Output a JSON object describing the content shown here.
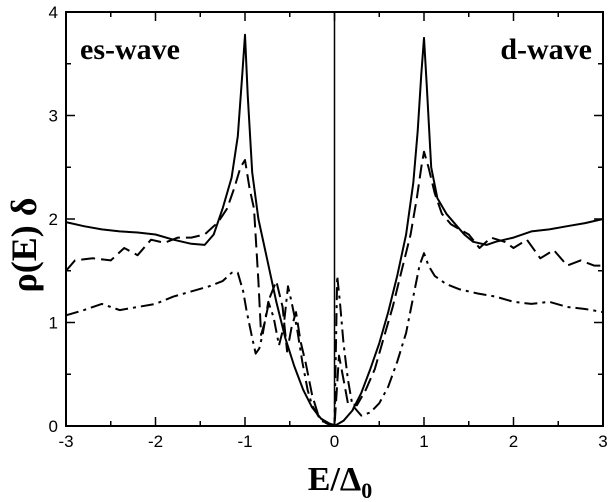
{
  "chart_data": {
    "type": "line",
    "xlabel": "E/Δ",
    "xlabel_sub": "0",
    "ylabel": "ρ(E) δ",
    "xlim": [
      -3,
      3
    ],
    "ylim": [
      0,
      4
    ],
    "x_ticks": [
      -3,
      -2,
      -1,
      0,
      1,
      2,
      3
    ],
    "x_tick_labels": [
      "-3",
      "-2",
      "-1",
      "0",
      "1",
      "2",
      "3"
    ],
    "y_ticks": [
      0,
      1,
      2,
      3,
      4
    ],
    "y_tick_labels": [
      "0",
      "1",
      "2",
      "3",
      "4"
    ],
    "grid": false,
    "legend": "none",
    "annotations": {
      "left": "es-wave",
      "right": "d-wave"
    },
    "series": [
      {
        "style": "solid",
        "points": [
          [
            -3,
            1.97
          ],
          [
            -2.8,
            1.93
          ],
          [
            -2.6,
            1.9
          ],
          [
            -2.4,
            1.88
          ],
          [
            -2.2,
            1.87
          ],
          [
            -2.0,
            1.85
          ],
          [
            -1.8,
            1.8
          ],
          [
            -1.6,
            1.76
          ],
          [
            -1.45,
            1.75
          ],
          [
            -1.35,
            1.85
          ],
          [
            -1.25,
            2.1
          ],
          [
            -1.15,
            2.4
          ],
          [
            -1.08,
            2.8
          ],
          [
            -1.03,
            3.4
          ],
          [
            -1.0,
            3.78
          ],
          [
            -0.97,
            3.2
          ],
          [
            -0.92,
            2.45
          ],
          [
            -0.85,
            2.0
          ],
          [
            -0.75,
            1.6
          ],
          [
            -0.65,
            1.2
          ],
          [
            -0.55,
            0.85
          ],
          [
            -0.45,
            0.58
          ],
          [
            -0.35,
            0.35
          ],
          [
            -0.25,
            0.18
          ],
          [
            -0.15,
            0.07
          ],
          [
            -0.05,
            0.02
          ],
          [
            0.0,
            0.0
          ],
          [
            0.1,
            0.05
          ],
          [
            0.2,
            0.15
          ],
          [
            0.3,
            0.32
          ],
          [
            0.4,
            0.55
          ],
          [
            0.5,
            0.8
          ],
          [
            0.6,
            1.1
          ],
          [
            0.7,
            1.45
          ],
          [
            0.8,
            1.85
          ],
          [
            0.88,
            2.35
          ],
          [
            0.93,
            2.85
          ],
          [
            0.97,
            3.4
          ],
          [
            1.0,
            3.75
          ],
          [
            1.03,
            3.3
          ],
          [
            1.08,
            2.5
          ],
          [
            1.15,
            2.2
          ],
          [
            1.25,
            2.05
          ],
          [
            1.35,
            1.95
          ],
          [
            1.45,
            1.85
          ],
          [
            1.55,
            1.78
          ],
          [
            1.7,
            1.75
          ],
          [
            1.8,
            1.78
          ],
          [
            2.0,
            1.82
          ],
          [
            2.2,
            1.88
          ],
          [
            2.4,
            1.9
          ],
          [
            2.6,
            1.93
          ],
          [
            2.8,
            1.96
          ],
          [
            3.0,
            2.0
          ]
        ]
      },
      {
        "style": "dashed",
        "points": [
          [
            -3,
            1.5
          ],
          [
            -2.9,
            1.6
          ],
          [
            -2.7,
            1.62
          ],
          [
            -2.5,
            1.6
          ],
          [
            -2.35,
            1.72
          ],
          [
            -2.2,
            1.65
          ],
          [
            -2.05,
            1.8
          ],
          [
            -1.9,
            1.77
          ],
          [
            -1.75,
            1.82
          ],
          [
            -1.6,
            1.82
          ],
          [
            -1.45,
            1.85
          ],
          [
            -1.3,
            1.97
          ],
          [
            -1.2,
            2.1
          ],
          [
            -1.12,
            2.3
          ],
          [
            -1.05,
            2.5
          ],
          [
            -1.0,
            2.57
          ],
          [
            -0.95,
            2.3
          ],
          [
            -0.9,
            2.1
          ],
          [
            -0.85,
            1.4
          ],
          [
            -0.82,
            0.88
          ],
          [
            -0.78,
            1.0
          ],
          [
            -0.72,
            1.25
          ],
          [
            -0.65,
            1.4
          ],
          [
            -0.58,
            1.15
          ],
          [
            -0.53,
            0.72
          ],
          [
            -0.48,
            0.95
          ],
          [
            -0.43,
            1.1
          ],
          [
            -0.38,
            0.82
          ],
          [
            -0.32,
            0.6
          ],
          [
            -0.25,
            0.3
          ],
          [
            -0.18,
            0.1
          ],
          [
            -0.1,
            0.03
          ],
          [
            -0.05,
            0.01
          ],
          [
            0.0,
            0.0
          ],
          [
            0.05,
            0.68
          ],
          [
            0.1,
            0.45
          ],
          [
            0.15,
            0.22
          ],
          [
            0.25,
            0.2
          ],
          [
            0.35,
            0.35
          ],
          [
            0.45,
            0.55
          ],
          [
            0.55,
            0.85
          ],
          [
            0.65,
            1.15
          ],
          [
            0.75,
            1.5
          ],
          [
            0.85,
            1.85
          ],
          [
            0.92,
            2.2
          ],
          [
            0.97,
            2.5
          ],
          [
            1.0,
            2.65
          ],
          [
            1.05,
            2.5
          ],
          [
            1.12,
            2.25
          ],
          [
            1.2,
            2.05
          ],
          [
            1.3,
            1.95
          ],
          [
            1.4,
            1.9
          ],
          [
            1.5,
            1.85
          ],
          [
            1.62,
            1.72
          ],
          [
            1.75,
            1.82
          ],
          [
            1.9,
            1.78
          ],
          [
            2.0,
            1.72
          ],
          [
            2.15,
            1.8
          ],
          [
            2.3,
            1.62
          ],
          [
            2.45,
            1.7
          ],
          [
            2.6,
            1.55
          ],
          [
            2.75,
            1.6
          ],
          [
            2.9,
            1.55
          ],
          [
            3.0,
            1.55
          ]
        ]
      },
      {
        "style": "dashdot",
        "points": [
          [
            -3,
            1.07
          ],
          [
            -2.8,
            1.12
          ],
          [
            -2.6,
            1.18
          ],
          [
            -2.4,
            1.12
          ],
          [
            -2.2,
            1.15
          ],
          [
            -2.0,
            1.18
          ],
          [
            -1.8,
            1.25
          ],
          [
            -1.6,
            1.3
          ],
          [
            -1.4,
            1.35
          ],
          [
            -1.25,
            1.4
          ],
          [
            -1.15,
            1.48
          ],
          [
            -1.08,
            1.48
          ],
          [
            -1.02,
            1.3
          ],
          [
            -0.98,
            1.1
          ],
          [
            -0.92,
            0.85
          ],
          [
            -0.88,
            0.7
          ],
          [
            -0.84,
            0.75
          ],
          [
            -0.8,
            0.9
          ],
          [
            -0.74,
            1.2
          ],
          [
            -0.68,
            1.05
          ],
          [
            -0.62,
            0.78
          ],
          [
            -0.57,
            0.95
          ],
          [
            -0.52,
            1.35
          ],
          [
            -0.48,
            1.2
          ],
          [
            -0.42,
            0.95
          ],
          [
            -0.36,
            0.62
          ],
          [
            -0.3,
            0.35
          ],
          [
            -0.25,
            0.2
          ],
          [
            -0.15,
            0.05
          ],
          [
            -0.05,
            0.02
          ],
          [
            0.0,
            0.01
          ],
          [
            0.03,
            1.45
          ],
          [
            0.06,
            1.2
          ],
          [
            0.1,
            0.8
          ],
          [
            0.15,
            0.45
          ],
          [
            0.2,
            0.2
          ],
          [
            0.3,
            0.1
          ],
          [
            0.4,
            0.13
          ],
          [
            0.5,
            0.22
          ],
          [
            0.6,
            0.38
          ],
          [
            0.7,
            0.62
          ],
          [
            0.8,
            0.9
          ],
          [
            0.88,
            1.25
          ],
          [
            0.95,
            1.55
          ],
          [
            1.0,
            1.67
          ],
          [
            1.05,
            1.55
          ],
          [
            1.12,
            1.45
          ],
          [
            1.25,
            1.37
          ],
          [
            1.4,
            1.32
          ],
          [
            1.6,
            1.28
          ],
          [
            1.8,
            1.25
          ],
          [
            2.0,
            1.2
          ],
          [
            2.2,
            1.18
          ],
          [
            2.4,
            1.2
          ],
          [
            2.6,
            1.15
          ],
          [
            2.8,
            1.13
          ],
          [
            3.0,
            1.1
          ]
        ]
      }
    ]
  }
}
